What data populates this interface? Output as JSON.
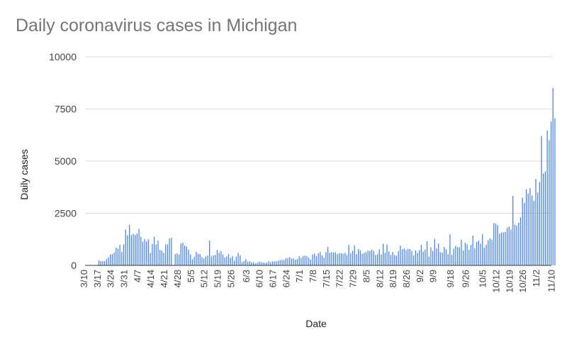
{
  "chart_data": {
    "type": "bar",
    "title": "Daily coronavirus cases in Michigan",
    "xlabel": "Date",
    "ylabel": "Daily cases",
    "ylim": [
      0,
      10000
    ],
    "y_ticks": [
      "0",
      "2500",
      "5000",
      "7500",
      "10000"
    ],
    "y_tick_values": [
      0,
      2500,
      5000,
      7500,
      10000
    ],
    "x_tick_labels": [
      "3/10",
      "3/17",
      "3/24",
      "3/31",
      "4/7",
      "4/14",
      "4/21",
      "4/28",
      "5/5",
      "5/12",
      "5/19",
      "5/26",
      "6/3",
      "6/10",
      "6/17",
      "6/24",
      "7/1",
      "7/8",
      "7/15",
      "7/22",
      "7/29",
      "8/5",
      "8/12",
      "8/19",
      "8/26",
      "9/2",
      "9/9",
      "9/18",
      "9/26",
      "10/5",
      "10/12",
      "10/19",
      "10/26",
      "11/2",
      "11/10"
    ],
    "x_tick_days": [
      0,
      7,
      14,
      21,
      28,
      35,
      42,
      49,
      56,
      63,
      70,
      77,
      85,
      92,
      99,
      106,
      113,
      120,
      127,
      134,
      141,
      148,
      155,
      162,
      169,
      176,
      183,
      192,
      200,
      209,
      216,
      223,
      230,
      237,
      245
    ],
    "grid": true,
    "bar_color": "#4a86e8",
    "first_date": "3/10",
    "values": [
      0,
      0,
      0,
      0,
      0,
      0,
      0,
      0,
      250,
      200,
      200,
      210,
      300,
      380,
      520,
      540,
      620,
      850,
      800,
      980,
      660,
      1010,
      1720,
      1440,
      1950,
      1450,
      1510,
      1460,
      1530,
      1750,
      1370,
      1140,
      1270,
      1150,
      1250,
      590,
      1020,
      1380,
      1000,
      1190,
      740,
      710,
      600,
      1000,
      1000,
      1300,
      1330,
      0,
      540,
      580,
      510,
      1050,
      1090,
      950,
      900,
      750,
      530,
      300,
      410,
      650,
      560,
      550,
      400,
      340,
      430,
      470,
      1190,
      430,
      480,
      500,
      740,
      600,
      690,
      520,
      370,
      430,
      540,
      360,
      450,
      220,
      420,
      600,
      490,
      150,
      200,
      300,
      180,
      200,
      150,
      150,
      100,
      130,
      180,
      150,
      150,
      120,
      130,
      200,
      150,
      190,
      190,
      210,
      220,
      260,
      270,
      260,
      340,
      350,
      390,
      320,
      330,
      270,
      300,
      440,
      360,
      450,
      470,
      440,
      370,
      280,
      520,
      560,
      440,
      580,
      640,
      480,
      370,
      640,
      890,
      600,
      640,
      620,
      630,
      550,
      580,
      590,
      560,
      600,
      500,
      980,
      590,
      700,
      960,
      540,
      780,
      720,
      560,
      600,
      640,
      720,
      690,
      750,
      700,
      500,
      530,
      770,
      520,
      1040,
      610,
      1000,
      680,
      500,
      640,
      500,
      460,
      690,
      950,
      770,
      810,
      730,
      790,
      780,
      700,
      470,
      720,
      600,
      730,
      980,
      660,
      760,
      1150,
      420,
      870,
      690,
      1270,
      820,
      1050,
      630,
      610,
      880,
      770,
      540,
      1490,
      500,
      800,
      940,
      880,
      870,
      1230,
      720,
      1090,
      1010,
      750,
      980,
      1430,
      820,
      1120,
      1190,
      1040,
      1490,
      850,
      990,
      1210,
      1300,
      1240,
      2030,
      2000,
      1930,
      1520,
      1580,
      1590,
      1610,
      1800,
      1860,
      1720,
      3340,
      1950,
      1900,
      2050,
      2300,
      3250,
      3000,
      3650,
      3440,
      3700,
      3350,
      3100,
      4150,
      3500,
      4000,
      6200,
      4400,
      4500,
      6470,
      6000,
      6900,
      8500,
      7050
    ]
  }
}
